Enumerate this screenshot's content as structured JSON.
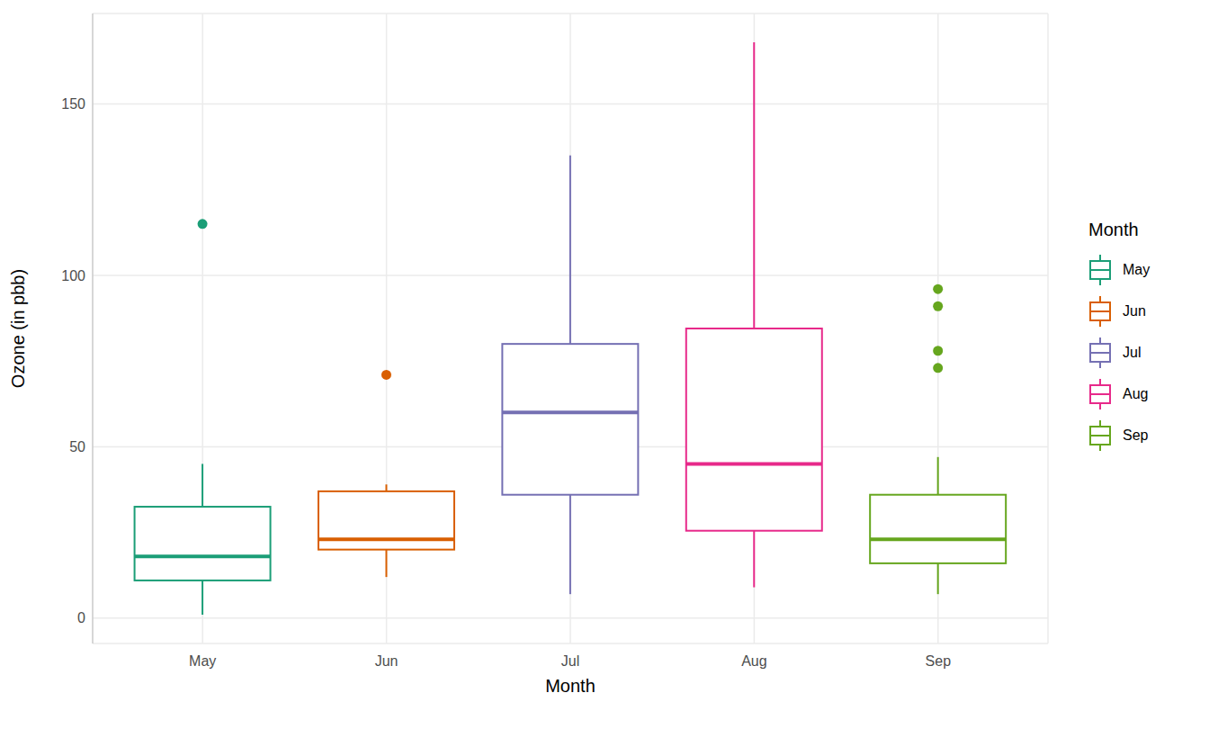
{
  "chart_data": {
    "type": "boxplot",
    "x_label": "Month",
    "y_label": "Ozone (in pbb)",
    "legend_title": "Month",
    "legend": "right",
    "grid": true,
    "categories": [
      "May",
      "Jun",
      "Jul",
      "Aug",
      "Sep"
    ],
    "colors": [
      "#1B9E77",
      "#D95F02",
      "#7570B3",
      "#E7298A",
      "#66A61E"
    ],
    "boxes": [
      {
        "whisker_low": 1,
        "q1": 11,
        "median": 18,
        "q3": 32.5,
        "whisker_high": 45,
        "outliers": [
          115
        ]
      },
      {
        "whisker_low": 12,
        "q1": 20,
        "median": 23,
        "q3": 37,
        "whisker_high": 39,
        "outliers": [
          71
        ]
      },
      {
        "whisker_low": 7,
        "q1": 36,
        "median": 60,
        "q3": 80,
        "whisker_high": 135,
        "outliers": []
      },
      {
        "whisker_low": 9,
        "q1": 25.5,
        "median": 45,
        "q3": 84.5,
        "whisker_high": 168,
        "outliers": []
      },
      {
        "whisker_low": 7,
        "q1": 16,
        "median": 23,
        "q3": 36,
        "whisker_high": 47,
        "outliers": [
          73,
          78,
          91,
          96
        ]
      }
    ],
    "ylim": [
      -7.4,
      176.4
    ],
    "yticks": [
      0,
      50,
      100,
      150
    ]
  }
}
